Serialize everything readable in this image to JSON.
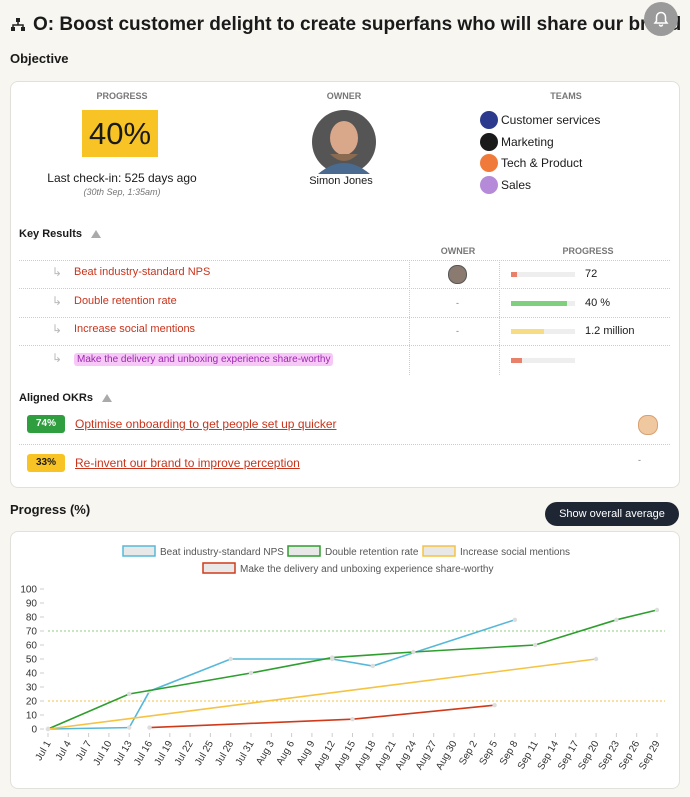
{
  "header": {
    "title": "O: Boost customer delight to create superfans who will share our brand"
  },
  "objective": {
    "heading": "Objective",
    "progress_label": "PROGRESS",
    "progress": "40%",
    "checkin": "Last check-in: 525 days ago",
    "checkin_date": "(30th Sep, 1:35am)",
    "owner_label": "OWNER",
    "owner_name": "Simon Jones",
    "teams_label": "TEAMS",
    "teams": [
      {
        "name": "Customer services",
        "color": "#2b3a8c"
      },
      {
        "name": "Marketing",
        "color": "#1a1a1a"
      },
      {
        "name": "Tech & Product",
        "color": "#f07a3a"
      },
      {
        "name": "Sales",
        "color": "#b58ad8"
      }
    ]
  },
  "key_results": {
    "heading": "Key Results",
    "owner_label": "OWNER",
    "progress_label": "PROGRESS",
    "rows": [
      {
        "name": "Beat industry-standard NPS",
        "bar": 9,
        "color": "#e8806a",
        "value": "72"
      },
      {
        "name": "Double retention rate",
        "owner": "-",
        "bar": 88,
        "color": "#7fcf7f",
        "value": "40 %"
      },
      {
        "name": "Increase social mentions",
        "owner": "-",
        "bar": 52,
        "color": "#f7dc84",
        "value": "1.2 million"
      },
      {
        "name": "Make the delivery and unboxing experience share-worthy",
        "bar": 17,
        "color": "#e8806a"
      }
    ]
  },
  "aligned_okrs": {
    "heading": "Aligned OKRs",
    "items": [
      {
        "progress": "74%",
        "color": "#2e9e3e",
        "text_color": "#ffffff",
        "title": "Optimise onboarding to get people set up quicker"
      },
      {
        "progress": "33%",
        "color": "#f7c325",
        "text_color": "#1a1a1a",
        "title": "Re-invent our brand to improve perception",
        "owner": "-"
      }
    ]
  },
  "progress_section": {
    "heading": "Progress (%)",
    "button": "Show overall average"
  },
  "chart_data": {
    "type": "line",
    "categories": [
      "Jul 1",
      "Jul 4",
      "Jul 7",
      "Jul 10",
      "Jul 13",
      "Jul 16",
      "Jul 19",
      "Jul 22",
      "Jul 25",
      "Jul 28",
      "Jul 31",
      "Aug 3",
      "Aug 6",
      "Aug 9",
      "Aug 12",
      "Aug 15",
      "Aug 18",
      "Aug 21",
      "Aug 24",
      "Aug 27",
      "Aug 30",
      "Sep 2",
      "Sep 5",
      "Sep 8",
      "Sep 11",
      "Sep 14",
      "Sep 17",
      "Sep 20",
      "Sep 23",
      "Sep 26",
      "Sep 29"
    ],
    "ylim": [
      0,
      100
    ],
    "yticks": [
      0,
      10,
      20,
      30,
      40,
      50,
      60,
      70,
      80,
      90,
      100
    ],
    "reference_lines": [
      {
        "value": 70,
        "color": "#8fd07f"
      },
      {
        "value": 20,
        "color": "#f5c242"
      }
    ],
    "series": [
      {
        "name": "Beat industry-standard NPS",
        "color": "#56b8d9",
        "x": [
          "Jul 1",
          "Jul 13",
          "Jul 16",
          "Jul 28",
          "Aug 12",
          "Aug 18",
          "Sep 8"
        ],
        "values": [
          0,
          1,
          27,
          50,
          50,
          45,
          78
        ]
      },
      {
        "name": "Double retention rate",
        "color": "#2e9e2e",
        "x": [
          "Jul 1",
          "Jul 13",
          "Jul 31",
          "Aug 12",
          "Aug 24",
          "Sep 11",
          "Sep 23",
          "Sep 29"
        ],
        "values": [
          0,
          25,
          40,
          51,
          55,
          60,
          78,
          85
        ]
      },
      {
        "name": "Increase social mentions",
        "color": "#f5c242",
        "x": [
          "Jul 1",
          "Sep 20"
        ],
        "values": [
          0,
          50
        ]
      },
      {
        "name": "Make the delivery and unboxing experience share-worthy",
        "color": "#d03a1a",
        "x": [
          "Jul 16",
          "Aug 15",
          "Sep 5"
        ],
        "values": [
          1,
          7,
          17
        ]
      }
    ]
  }
}
